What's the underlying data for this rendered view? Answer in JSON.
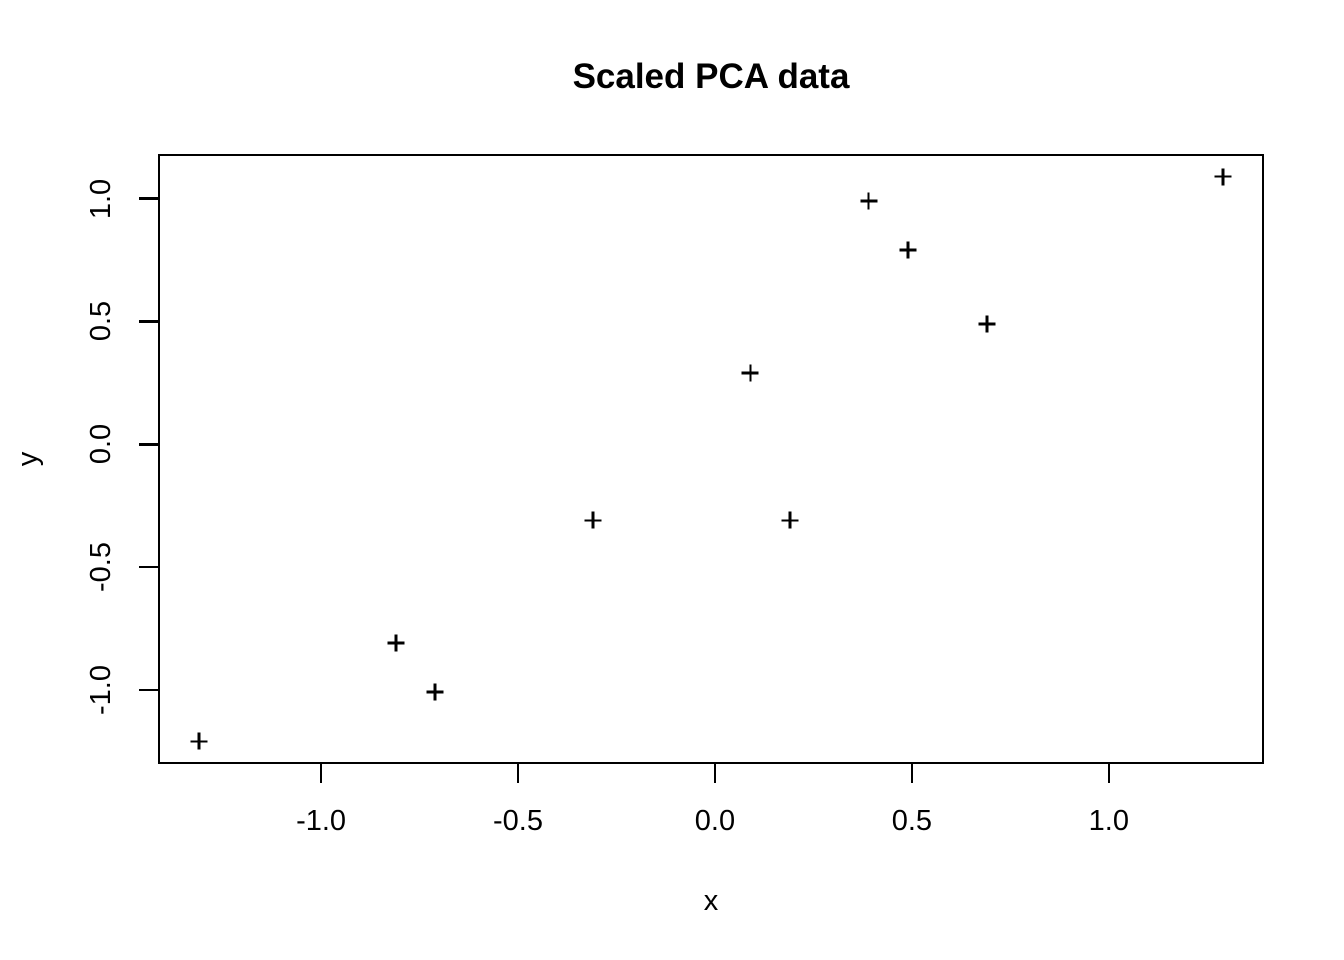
{
  "figure": {
    "title": "Scaled PCA data"
  },
  "chart_data": {
    "type": "scatter",
    "title": "Scaled PCA data",
    "xlabel": "x",
    "ylabel": "y",
    "marker": "plus",
    "grid": false,
    "legend": false,
    "xlim": [
      -1.414,
      1.394
    ],
    "ylim": [
      -1.302,
      1.182
    ],
    "x_ticks": [
      -1.0,
      -0.5,
      0.0,
      0.5,
      1.0
    ],
    "y_ticks": [
      -1.0,
      -0.5,
      0.0,
      0.5,
      1.0
    ],
    "x_tick_labels": [
      "-1.0",
      "-0.5",
      "0.0",
      "0.5",
      "1.0"
    ],
    "y_tick_labels": [
      "-1.0",
      "-0.5",
      "0.0",
      "0.5",
      "1.0"
    ],
    "points": [
      {
        "x": 0.69,
        "y": 0.49
      },
      {
        "x": -1.31,
        "y": -1.21
      },
      {
        "x": 0.39,
        "y": 0.99
      },
      {
        "x": 0.09,
        "y": 0.29
      },
      {
        "x": 1.29,
        "y": 1.09
      },
      {
        "x": 0.49,
        "y": 0.79
      },
      {
        "x": 0.19,
        "y": -0.31
      },
      {
        "x": -0.81,
        "y": -0.81
      },
      {
        "x": -0.31,
        "y": -0.31
      },
      {
        "x": -0.71,
        "y": -1.01
      }
    ],
    "colors": {
      "marker": "#000000",
      "axis": "#000000",
      "text": "#000000",
      "background": "#ffffff"
    }
  }
}
